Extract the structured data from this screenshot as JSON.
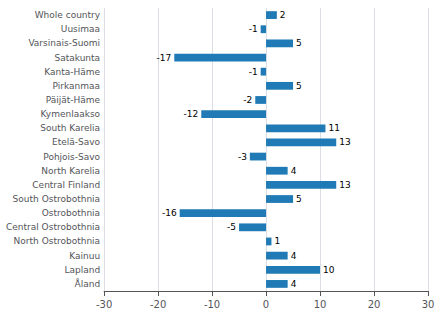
{
  "chart_data": {
    "type": "bar",
    "orientation": "horizontal",
    "categories": [
      "Whole country",
      "Uusimaa",
      "Varsinais-Suomi",
      "Satakunta",
      "Kanta-Häme",
      "Pirkanmaa",
      "Päijät-Häme",
      "Kymenlaakso",
      "South Karelia",
      "Etelä-Savo",
      "Pohjois-Savo",
      "North Karelia",
      "Central Finland",
      "South Ostrobothnia",
      "Ostrobothnia",
      "Central Ostrobothnia",
      "North Ostrobothnia",
      "Kainuu",
      "Lapland",
      "Åland"
    ],
    "values": [
      2,
      -1,
      5,
      -17,
      -1,
      5,
      -2,
      -12,
      11,
      13,
      -3,
      4,
      13,
      5,
      -16,
      -5,
      1,
      4,
      10,
      4
    ],
    "color": "#1f7ab5",
    "xlim": [
      -30,
      30
    ],
    "xticks": [
      -30,
      -20,
      -10,
      0,
      10,
      20,
      30
    ],
    "grid": true,
    "data_labels": true
  }
}
